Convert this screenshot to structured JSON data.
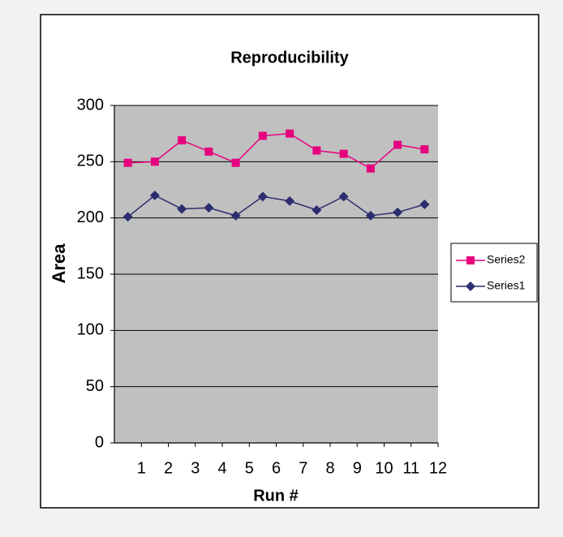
{
  "chart_data": {
    "type": "line",
    "title": "Reproducibility",
    "x_label": "Run #",
    "y_label": "Area",
    "x": [
      0.5,
      1.5,
      2.5,
      3.5,
      4.5,
      5.5,
      6.5,
      7.5,
      8.5,
      9.5,
      10.5,
      11.5
    ],
    "xlim": [
      0,
      12
    ],
    "xticks": [
      1,
      2,
      3,
      4,
      5,
      6,
      7,
      8,
      9,
      10,
      11,
      12
    ],
    "ylim": [
      0,
      300
    ],
    "yticks": [
      0,
      50,
      100,
      150,
      200,
      250,
      300
    ],
    "grid": true,
    "legend": "right",
    "series": [
      {
        "name": "Series2",
        "color": "#e6007e",
        "marker": "square",
        "values": [
          249,
          250,
          269,
          259,
          249,
          273,
          275,
          260,
          257,
          244,
          265,
          261
        ]
      },
      {
        "name": "Series1",
        "color": "#2b2d6e",
        "marker": "diamond",
        "values": [
          201,
          220,
          208,
          209,
          202,
          219,
          215,
          207,
          219,
          202,
          205,
          212
        ]
      }
    ]
  }
}
